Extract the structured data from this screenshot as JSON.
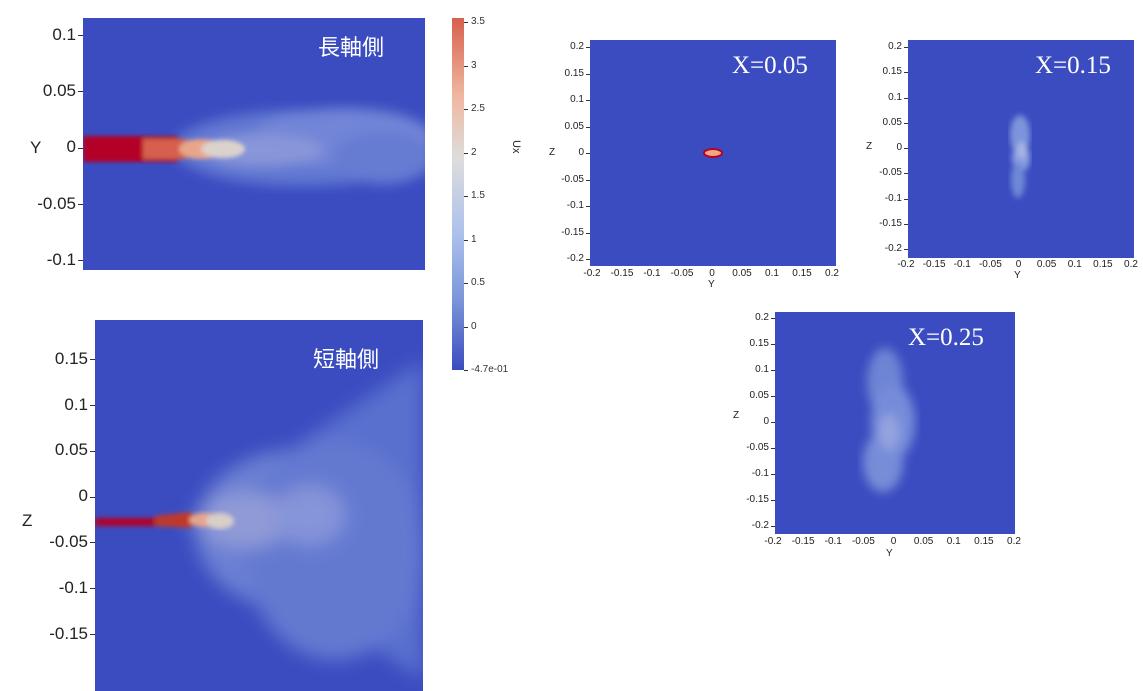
{
  "panels": {
    "long_axis": {
      "label": "長軸側",
      "axis_name": "Y",
      "y_ticks": [
        "0.1",
        "0.05",
        "0",
        "-0.05",
        "-0.1"
      ]
    },
    "short_axis": {
      "label": "短軸側",
      "axis_name": "Z",
      "y_ticks": [
        "0.15",
        "0.1",
        "0.05",
        "0",
        "-0.05",
        "-0.1",
        "-0.15"
      ]
    },
    "x005": {
      "label": "X=0.05",
      "x_name": "Y",
      "y_name": "Z",
      "y_ticks": [
        "0.2",
        "0.15",
        "0.1",
        "0.05",
        "0",
        "-0.05",
        "-0.1",
        "-0.15",
        "-0.2"
      ],
      "x_ticks": [
        "-0.2",
        "-0.15",
        "-0.1",
        "-0.05",
        "0",
        "0.05",
        "0.1",
        "0.15",
        "0.2"
      ]
    },
    "x015": {
      "label": "X=0.15",
      "x_name": "Y",
      "y_name": "Z",
      "y_ticks": [
        "0.2",
        "0.15",
        "0.1",
        "0.05",
        "0",
        "-0.05",
        "-0.1",
        "-0.15",
        "-0.2"
      ],
      "x_ticks": [
        "-0.2",
        "-0.15",
        "-0.1",
        "-0.05",
        "0",
        "0.05",
        "0.1",
        "0.15",
        "0.2"
      ]
    },
    "x025": {
      "label": "X=0.25",
      "x_name": "Y",
      "y_name": "Z",
      "y_ticks": [
        "0.2",
        "0.15",
        "0.1",
        "0.05",
        "0",
        "-0.05",
        "-0.1",
        "-0.15",
        "-0.2"
      ],
      "x_ticks": [
        "-0.2",
        "-0.15",
        "-0.1",
        "-0.05",
        "0",
        "0.05",
        "0.1",
        "0.15",
        "0.2"
      ]
    }
  },
  "colorbar": {
    "title": "Ux",
    "ticks": [
      "3.5",
      "3",
      "2.5",
      "2",
      "1.5",
      "1",
      "0.5",
      "0",
      "-4.7e-01"
    ],
    "colors": {
      "high": "#d6604d",
      "mid": "#dddddd",
      "low": "#3b4cc0"
    }
  }
}
